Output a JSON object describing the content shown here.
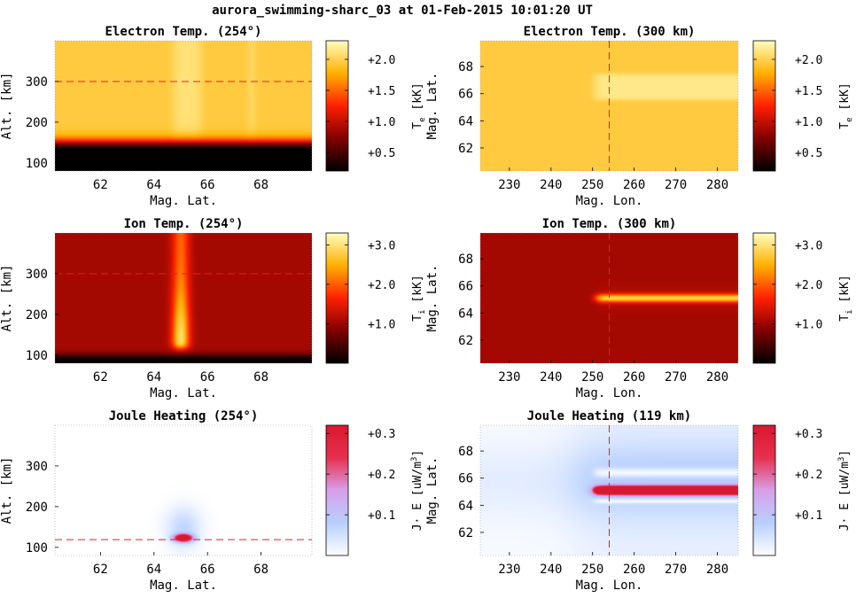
{
  "figure": {
    "title": "aurora_swimming-sharc_03 at 01-Feb-2015 10:01:20 UT"
  },
  "colors": {
    "hot_colormap": [
      "#000000",
      "#800000",
      "#ff2000",
      "#ffb000",
      "#ffffc0"
    ],
    "joule_colormap": [
      "#ffffff",
      "#b8d0ff",
      "#d8a0e8",
      "#e83050",
      "#d81830"
    ],
    "reference_line": "#e02020"
  },
  "chart_data": [
    {
      "id": "te_alt",
      "type": "heatmap",
      "title": "Electron Temp. (254°)",
      "xlabel": "Mag. Lat.",
      "ylabel": "Alt. [km]",
      "xlim": [
        60.3,
        69.9
      ],
      "ylim": [
        80,
        400
      ],
      "xticks": [
        62,
        64,
        66,
        68
      ],
      "yticks": [
        100,
        200,
        300
      ],
      "colorbar": {
        "label": "T",
        "label_sub": "e",
        "label_unit": " [kK]",
        "range": [
          0.2,
          2.3
        ],
        "ticks": [
          "+0.5",
          "+1.0",
          "+1.5",
          "+2.0"
        ],
        "tick_values": [
          0.5,
          1.0,
          1.5,
          2.0
        ],
        "colormap": "hot"
      },
      "reference_line": {
        "axis": "y",
        "value": 300
      },
      "field": {
        "kind": "te_alt",
        "background": 1.95,
        "boundary_alt": 150,
        "aurora_lat": [
          64.9,
          65.6
        ],
        "aurora_peak": 2.1,
        "secondary_lat": [
          67.5,
          67.8
        ],
        "secondary_peak": 2.05
      }
    },
    {
      "id": "te_map",
      "type": "heatmap",
      "title": "Electron Temp. (300 km)",
      "xlabel": "Mag. Lon.",
      "ylabel": "Mag. Lat.",
      "xlim": [
        223,
        285
      ],
      "ylim": [
        60.3,
        69.9
      ],
      "xticks": [
        230,
        240,
        250,
        260,
        270,
        280
      ],
      "yticks": [
        62,
        64,
        66,
        68
      ],
      "colorbar": {
        "label": "T",
        "label_sub": "e",
        "label_unit": " [kK]",
        "range": [
          0.2,
          2.3
        ],
        "ticks": [
          "+0.5",
          "+1.0",
          "+1.5",
          "+2.0"
        ],
        "tick_values": [
          0.5,
          1.0,
          1.5,
          2.0
        ],
        "colormap": "hot"
      },
      "reference_line": {
        "axis": "x",
        "value": 254
      },
      "field": {
        "kind": "te_map",
        "background": 1.95,
        "arc_lon_start": 250.5,
        "arc_lat": [
          65.5,
          67.5
        ],
        "arc_peak": 2.15
      }
    },
    {
      "id": "ti_alt",
      "type": "heatmap",
      "title": "Ion Temp. (254°)",
      "xlabel": "Mag. Lat.",
      "ylabel": "Alt. [km]",
      "xlim": [
        60.3,
        69.9
      ],
      "ylim": [
        80,
        400
      ],
      "xticks": [
        62,
        64,
        66,
        68
      ],
      "yticks": [
        100,
        200,
        300
      ],
      "colorbar": {
        "label": "T",
        "label_sub": "i",
        "label_unit": " [kK]",
        "range": [
          0.0,
          3.3
        ],
        "ticks": [
          "+1.0",
          "+2.0",
          "+3.0"
        ],
        "tick_values": [
          1.0,
          2.0,
          3.0
        ],
        "colormap": "hot"
      },
      "reference_line": {
        "axis": "y",
        "value": 300
      },
      "field": {
        "kind": "ti_alt",
        "background": 1.05,
        "boundary_alt": 100,
        "aurora_lat": 65.0,
        "aurora_halfwidth": 0.32,
        "peak_alt": 130,
        "peak": 3.2
      }
    },
    {
      "id": "ti_map",
      "type": "heatmap",
      "title": "Ion Temp. (300 km)",
      "xlabel": "Mag. Lon.",
      "ylabel": "Mag. Lat.",
      "xlim": [
        223,
        285
      ],
      "ylim": [
        60.3,
        69.9
      ],
      "xticks": [
        230,
        240,
        250,
        260,
        270,
        280
      ],
      "yticks": [
        62,
        64,
        66,
        68
      ],
      "colorbar": {
        "label": "T",
        "label_sub": "i",
        "label_unit": " [kK]",
        "range": [
          0.0,
          3.3
        ],
        "ticks": [
          "+1.0",
          "+2.0",
          "+3.0"
        ],
        "tick_values": [
          1.0,
          2.0,
          3.0
        ],
        "colormap": "hot"
      },
      "reference_line": {
        "axis": "x",
        "value": 254
      },
      "field": {
        "kind": "ti_map",
        "background": 1.05,
        "arc_lon_start": 251,
        "arc_lat": 65.1,
        "arc_halfwidth": 0.3,
        "arc_peak": 2.7
      }
    },
    {
      "id": "je_alt",
      "type": "heatmap",
      "title": "Joule Heating (254°)",
      "xlabel": "Mag. Lat.",
      "ylabel": "Alt. [km]",
      "xlim": [
        60.3,
        69.9
      ],
      "ylim": [
        80,
        400
      ],
      "xticks": [
        62,
        64,
        66,
        68
      ],
      "yticks": [
        100,
        200,
        300
      ],
      "colorbar": {
        "label": "J· E [uW/m",
        "label_sup": "3",
        "label_end": "]",
        "range": [
          0.0,
          0.32
        ],
        "ticks": [
          "+0.1",
          "+0.2",
          "+0.3"
        ],
        "tick_values": [
          0.1,
          0.2,
          0.3
        ],
        "colormap": "joule"
      },
      "reference_line": {
        "axis": "y",
        "value": 119
      },
      "field": {
        "kind": "je_alt",
        "center_lat": 65.1,
        "center_alt": 123,
        "peak": 0.45
      }
    },
    {
      "id": "je_map",
      "type": "heatmap",
      "title": "Joule Heating (119 km)",
      "xlabel": "Mag. Lon.",
      "ylabel": "Mag. Lat.",
      "xlim": [
        223,
        285
      ],
      "ylim": [
        60.3,
        69.9
      ],
      "xticks": [
        230,
        240,
        250,
        260,
        270,
        280
      ],
      "yticks": [
        62,
        64,
        66,
        68
      ],
      "colorbar": {
        "label": "J· E [uW/m",
        "label_sup": "3",
        "label_end": "]",
        "range": [
          0.0,
          0.32
        ],
        "ticks": [
          "+0.1",
          "+0.2",
          "+0.3"
        ],
        "tick_values": [
          0.1,
          0.2,
          0.3
        ],
        "colormap": "joule"
      },
      "reference_line": {
        "axis": "x",
        "value": 254
      },
      "field": {
        "kind": "je_map",
        "arc_lon_start": 250.5,
        "arc_lat": 65.1,
        "peak": 0.5,
        "background": 0.025
      }
    }
  ]
}
